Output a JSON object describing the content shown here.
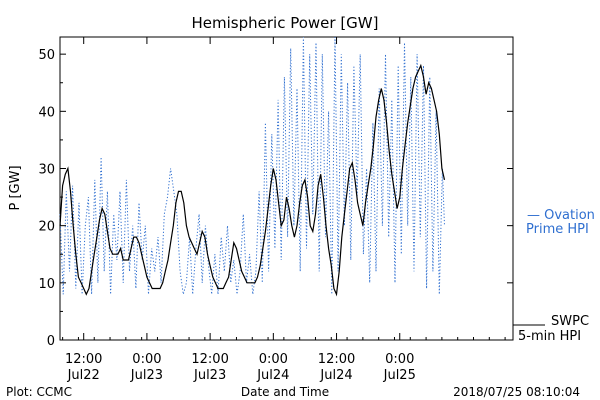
{
  "chart_data": {
    "type": "line",
    "title": "Hemispheric Power [GW]",
    "ylabel": "P [GW]",
    "xlabel": "Date and Time",
    "ylim": [
      0,
      53
    ],
    "xlim_hours": [
      0,
      86
    ],
    "yticks": [
      0,
      10,
      20,
      30,
      40,
      50
    ],
    "xticks": [
      {
        "h": 4.5,
        "time": "12:00",
        "date": "Jul22"
      },
      {
        "h": 16.5,
        "time": "0:00",
        "date": "Jul23"
      },
      {
        "h": 28.5,
        "time": "12:00",
        "date": "Jul23"
      },
      {
        "h": 40.5,
        "time": "0:00",
        "date": "Jul24"
      },
      {
        "h": 52.5,
        "time": "12:00",
        "date": "Jul24"
      },
      {
        "h": 64.5,
        "time": "0:00",
        "date": "Jul25"
      }
    ],
    "grid": false,
    "series": [
      {
        "name": "SWPC 5-min HPI",
        "color": "#000000",
        "style": "solid",
        "points": [
          [
            0,
            20
          ],
          [
            0.5,
            27
          ],
          [
            1,
            29
          ],
          [
            1.5,
            30
          ],
          [
            2,
            26
          ],
          [
            2.5,
            20
          ],
          [
            3,
            15
          ],
          [
            3.5,
            11
          ],
          [
            4,
            10
          ],
          [
            4.5,
            9
          ],
          [
            5,
            8
          ],
          [
            5.5,
            9
          ],
          [
            6,
            12
          ],
          [
            6.5,
            15
          ],
          [
            7,
            18
          ],
          [
            7.5,
            21
          ],
          [
            8,
            23
          ],
          [
            8.5,
            22
          ],
          [
            9,
            19
          ],
          [
            9.5,
            16
          ],
          [
            10,
            15
          ],
          [
            11,
            15
          ],
          [
            11.5,
            16
          ],
          [
            12,
            14
          ],
          [
            13,
            14
          ],
          [
            13.5,
            16
          ],
          [
            14,
            18
          ],
          [
            14.5,
            18
          ],
          [
            15,
            17
          ],
          [
            15.5,
            15
          ],
          [
            16,
            13
          ],
          [
            16.5,
            11
          ],
          [
            17,
            10
          ],
          [
            17.5,
            9
          ],
          [
            18,
            9
          ],
          [
            19,
            9
          ],
          [
            19.5,
            10
          ],
          [
            20,
            12
          ],
          [
            20.5,
            14
          ],
          [
            21,
            17
          ],
          [
            21.5,
            20
          ],
          [
            22,
            24
          ],
          [
            22.5,
            26
          ],
          [
            23,
            26
          ],
          [
            23.5,
            24
          ],
          [
            24,
            20
          ],
          [
            24.5,
            18
          ],
          [
            25,
            17
          ],
          [
            25.5,
            16
          ],
          [
            26,
            15
          ],
          [
            26.5,
            17
          ],
          [
            27,
            19
          ],
          [
            27.5,
            18
          ],
          [
            28,
            15
          ],
          [
            28.5,
            13
          ],
          [
            29,
            11
          ],
          [
            29.5,
            10
          ],
          [
            30,
            9
          ],
          [
            31,
            9
          ],
          [
            31.5,
            10
          ],
          [
            32,
            11
          ],
          [
            32.5,
            14
          ],
          [
            33,
            17
          ],
          [
            33.5,
            16
          ],
          [
            34,
            14
          ],
          [
            34.5,
            12
          ],
          [
            35,
            11
          ],
          [
            35.5,
            10
          ],
          [
            36,
            10
          ],
          [
            37,
            10
          ],
          [
            37.5,
            11
          ],
          [
            38,
            13
          ],
          [
            38.5,
            16
          ],
          [
            39,
            19
          ],
          [
            39.5,
            23
          ],
          [
            40,
            27
          ],
          [
            40.5,
            30
          ],
          [
            41,
            28
          ],
          [
            41.5,
            24
          ],
          [
            42,
            20
          ],
          [
            42.5,
            21
          ],
          [
            43,
            25
          ],
          [
            43.5,
            23
          ],
          [
            44,
            20
          ],
          [
            44.5,
            18
          ],
          [
            45,
            20
          ],
          [
            45.5,
            24
          ],
          [
            46,
            27
          ],
          [
            46.5,
            28
          ],
          [
            47,
            25
          ],
          [
            47.5,
            20
          ],
          [
            48,
            19
          ],
          [
            48.5,
            22
          ],
          [
            49,
            27
          ],
          [
            49.5,
            29
          ],
          [
            50,
            25
          ],
          [
            50.5,
            20
          ],
          [
            51,
            16
          ],
          [
            51.5,
            13
          ],
          [
            52,
            9
          ],
          [
            52.5,
            8
          ],
          [
            53,
            12
          ],
          [
            53.5,
            18
          ],
          [
            54,
            22
          ],
          [
            54.5,
            26
          ],
          [
            55,
            30
          ],
          [
            55.5,
            31
          ],
          [
            56,
            28
          ],
          [
            56.5,
            24
          ],
          [
            57,
            22
          ],
          [
            57.5,
            20
          ],
          [
            58,
            24
          ],
          [
            58.5,
            27
          ],
          [
            59,
            30
          ],
          [
            59.5,
            34
          ],
          [
            60,
            39
          ],
          [
            60.5,
            42
          ],
          [
            61,
            44
          ],
          [
            61.5,
            42
          ],
          [
            62,
            38
          ],
          [
            62.5,
            33
          ],
          [
            63,
            29
          ],
          [
            63.5,
            26
          ],
          [
            64,
            23
          ],
          [
            64.5,
            25
          ],
          [
            65,
            30
          ],
          [
            65.5,
            34
          ],
          [
            66,
            38
          ],
          [
            66.5,
            41
          ],
          [
            67,
            44
          ],
          [
            67.5,
            46
          ],
          [
            68,
            47
          ],
          [
            68.5,
            48
          ],
          [
            69,
            46
          ],
          [
            69.5,
            43
          ],
          [
            70,
            45
          ],
          [
            70.5,
            44
          ],
          [
            71,
            42
          ],
          [
            71.5,
            40
          ],
          [
            72,
            36
          ],
          [
            72.5,
            30
          ],
          [
            73,
            28
          ]
        ]
      },
      {
        "name": "Ovation Prime HPI",
        "color": "#2f6fd0",
        "style": "dotted",
        "points": [
          [
            0,
            22
          ],
          [
            0.6,
            8
          ],
          [
            1.2,
            26
          ],
          [
            1.8,
            12
          ],
          [
            2.4,
            27
          ],
          [
            3,
            9
          ],
          [
            3.6,
            24
          ],
          [
            4.2,
            8
          ],
          [
            4.8,
            20
          ],
          [
            5.4,
            25
          ],
          [
            6,
            8
          ],
          [
            6.6,
            28
          ],
          [
            7.2,
            10
          ],
          [
            7.8,
            32
          ],
          [
            8.4,
            12
          ],
          [
            9,
            26
          ],
          [
            9.6,
            8
          ],
          [
            10.2,
            22
          ],
          [
            10.8,
            14
          ],
          [
            11.4,
            26
          ],
          [
            12,
            10
          ],
          [
            12.6,
            28
          ],
          [
            13.2,
            12
          ],
          [
            13.8,
            20
          ],
          [
            14.4,
            9
          ],
          [
            15,
            24
          ],
          [
            15.6,
            14
          ],
          [
            16.2,
            20
          ],
          [
            16.8,
            8
          ],
          [
            17.4,
            16
          ],
          [
            18,
            12
          ],
          [
            18.6,
            18
          ],
          [
            19.2,
            10
          ],
          [
            19.8,
            22
          ],
          [
            20.4,
            25
          ],
          [
            21,
            30
          ],
          [
            21.6,
            26
          ],
          [
            22.2,
            22
          ],
          [
            22.8,
            12
          ],
          [
            23.4,
            8
          ],
          [
            24,
            10
          ],
          [
            24.6,
            18
          ],
          [
            25.2,
            8
          ],
          [
            25.8,
            16
          ],
          [
            26.4,
            22
          ],
          [
            27,
            10
          ],
          [
            27.6,
            20
          ],
          [
            28.2,
            13
          ],
          [
            28.8,
            8
          ],
          [
            29.4,
            15
          ],
          [
            30,
            8
          ],
          [
            30.6,
            18
          ],
          [
            31.2,
            12
          ],
          [
            31.8,
            20
          ],
          [
            32.4,
            10
          ],
          [
            33,
            14
          ],
          [
            33.6,
            8
          ],
          [
            34.2,
            12
          ],
          [
            34.8,
            22
          ],
          [
            35.4,
            10
          ],
          [
            36,
            15
          ],
          [
            36.6,
            8
          ],
          [
            37.2,
            12
          ],
          [
            37.8,
            26
          ],
          [
            38.4,
            10
          ],
          [
            39,
            38
          ],
          [
            39.6,
            12
          ],
          [
            40.2,
            36
          ],
          [
            40.8,
            16
          ],
          [
            41.4,
            42
          ],
          [
            42,
            14
          ],
          [
            42.6,
            46
          ],
          [
            43.2,
            18
          ],
          [
            43.8,
            51
          ],
          [
            44.4,
            20
          ],
          [
            45,
            44
          ],
          [
            45.6,
            12
          ],
          [
            46.2,
            53
          ],
          [
            46.8,
            16
          ],
          [
            47.4,
            50
          ],
          [
            48,
            22
          ],
          [
            48.6,
            52
          ],
          [
            49.2,
            12
          ],
          [
            49.8,
            50
          ],
          [
            50.4,
            18
          ],
          [
            51,
            40
          ],
          [
            51.6,
            8
          ],
          [
            52.2,
            53
          ],
          [
            52.8,
            12
          ],
          [
            53.4,
            50
          ],
          [
            54,
            20
          ],
          [
            54.6,
            45
          ],
          [
            55.2,
            14
          ],
          [
            55.8,
            48
          ],
          [
            56.4,
            25
          ],
          [
            57,
            50
          ],
          [
            57.6,
            15
          ],
          [
            58.2,
            30
          ],
          [
            58.8,
            10
          ],
          [
            59.4,
            38
          ],
          [
            60,
            12
          ],
          [
            60.6,
            44
          ],
          [
            61.2,
            20
          ],
          [
            61.8,
            50
          ],
          [
            62.4,
            18
          ],
          [
            63,
            42
          ],
          [
            63.6,
            10
          ],
          [
            64.2,
            48
          ],
          [
            64.8,
            15
          ],
          [
            65.4,
            52
          ],
          [
            66,
            20
          ],
          [
            66.6,
            46
          ],
          [
            67.2,
            12
          ],
          [
            67.8,
            50
          ],
          [
            68.4,
            18
          ],
          [
            69,
            48
          ],
          [
            69.6,
            9
          ],
          [
            70.2,
            46
          ],
          [
            70.8,
            12
          ],
          [
            71.4,
            40
          ],
          [
            72,
            8
          ],
          [
            72.6,
            30
          ],
          [
            73,
            20
          ]
        ]
      }
    ],
    "legend": [
      {
        "line1": "— Ovation",
        "line2": "Prime HPI",
        "color": "#2f6fd0"
      },
      {
        "line1": "SWPC",
        "line2": "5-min HPI",
        "color": "#000000"
      }
    ]
  },
  "footer": {
    "left": "Plot: CCMC",
    "center": "Date and Time",
    "right": "2018/07/25 08:10:04"
  }
}
